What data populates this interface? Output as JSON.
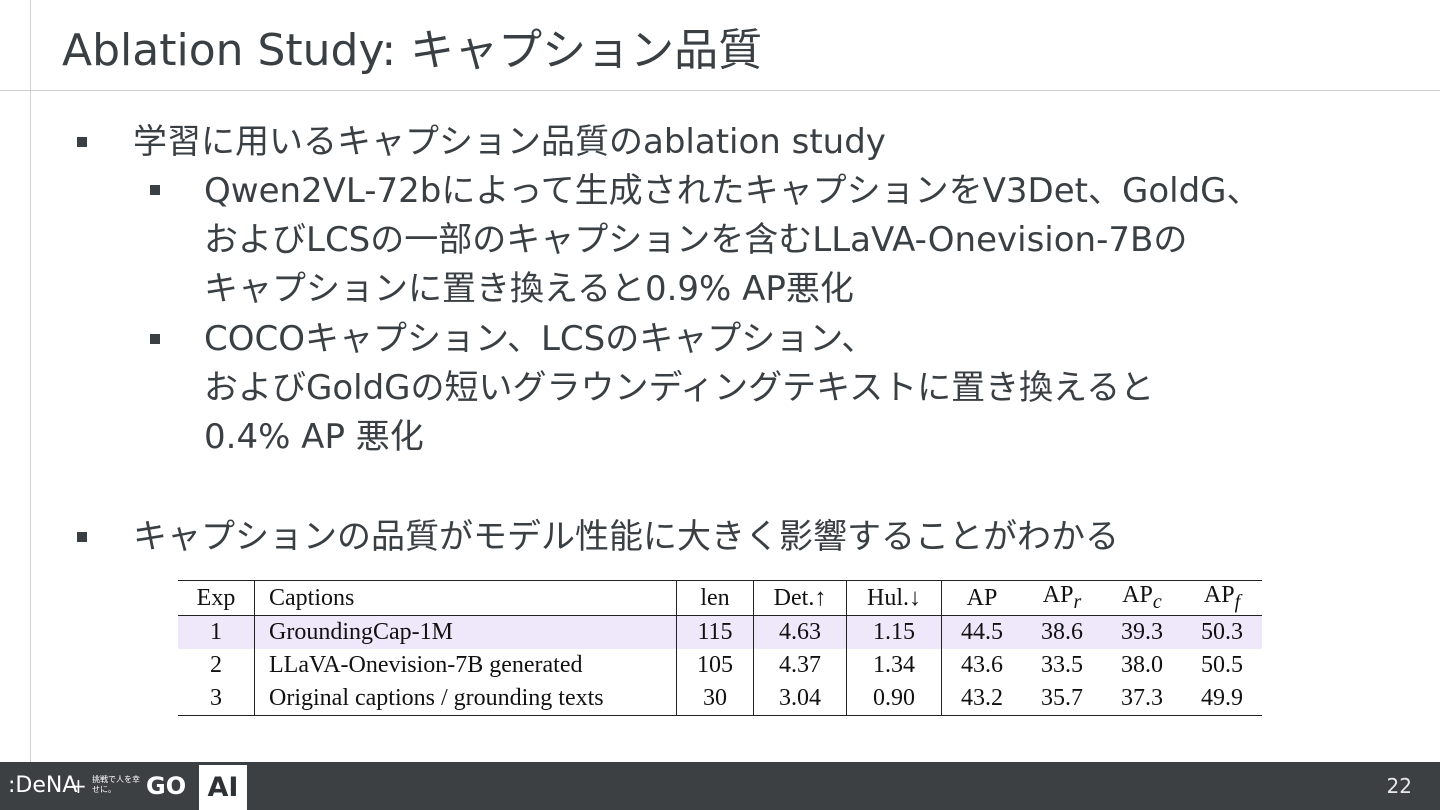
{
  "title": "Ablation Study: キャプション品質",
  "bullets": [
    {
      "text": "学習に用いるキャプション品質のablation study"
    },
    {
      "lines": [
        "Qwen2VL-72bによって生成されたキャプションをV3Det、GoldG、",
        "およびLCSの一部のキャプションを含むLLaVA-Onevision-7Bの",
        "キャプションに置き換えると0.9% AP悪化"
      ]
    },
    {
      "lines": [
        "COCOキャプション、LCSのキャプション、",
        "およびGoldGの短いグラウンディングテキストに置き換えると",
        "0.4% AP 悪化"
      ]
    },
    {
      "text": "キャプションの品質がモデル性能に大きく影響することがわかる"
    }
  ],
  "table": {
    "headers": {
      "exp": "Exp",
      "captions": "Captions",
      "len": "len",
      "det": "Det.↑",
      "hul": "Hul.↓",
      "ap": "AP",
      "ap_r_base": "AP",
      "ap_r_sub": "r",
      "ap_c_base": "AP",
      "ap_c_sub": "c",
      "ap_f_base": "AP",
      "ap_f_sub": "f"
    },
    "rows": [
      {
        "exp": "1",
        "captions": "GroundingCap-1M",
        "len": "115",
        "det": "4.63",
        "hul": "1.15",
        "ap": "44.5",
        "ap_r": "38.6",
        "ap_c": "39.3",
        "ap_f": "50.3"
      },
      {
        "exp": "2",
        "captions": "LLaVA-Onevision-7B generated",
        "len": "105",
        "det": "4.37",
        "hul": "1.34",
        "ap": "43.6",
        "ap_r": "33.5",
        "ap_c": "38.0",
        "ap_f": "50.5"
      },
      {
        "exp": "3",
        "captions": "Original captions / grounding texts",
        "len": "30",
        "det": "3.04",
        "hul": "0.90",
        "ap": "43.2",
        "ap_r": "35.7",
        "ap_c": "37.3",
        "ap_f": "49.9"
      }
    ],
    "highlight_color": "#efe8fb"
  },
  "footer": {
    "logo_dena": ":DeNA",
    "plus": "+",
    "tagline": "挑戦で人を幸せに。",
    "logo_go": "GO",
    "ai_label": "AI",
    "page_number": "22"
  }
}
